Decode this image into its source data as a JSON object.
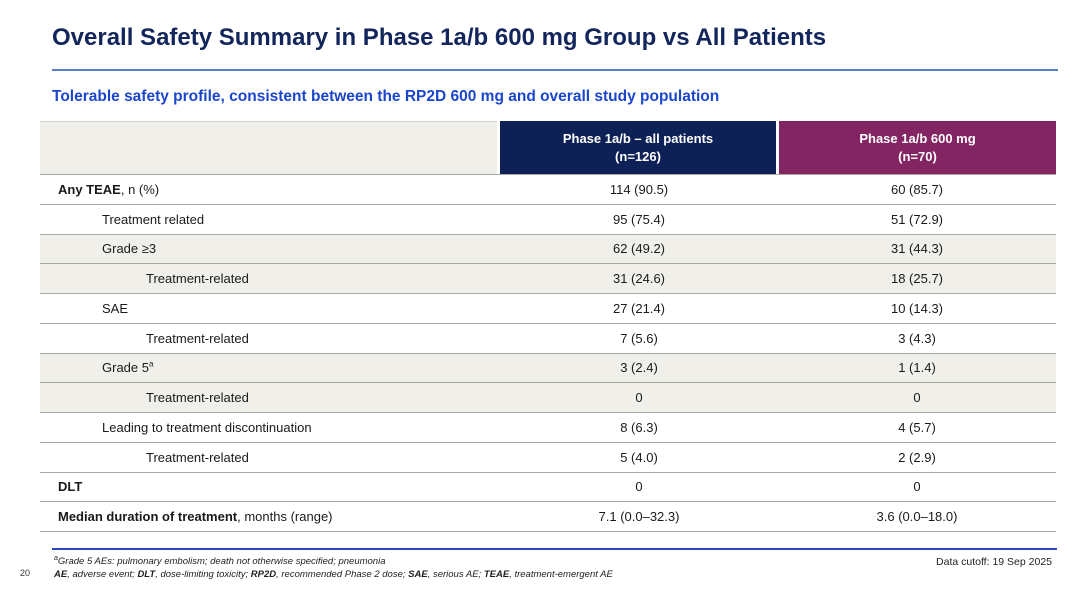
{
  "page_number": "20",
  "title": "Overall Safety Summary in Phase 1a/b 600 mg Group vs All Patients",
  "subtitle": "Tolerable safety profile, consistent between the RP2D 600 mg and overall study population",
  "colors": {
    "title_navy": "#13265c",
    "subtitle_blue": "#1b46cc",
    "header_navy": "#0d2157",
    "header_purple": "#832562",
    "shaded_row_gray": "#f0efe9",
    "title_rule_blue": "#5b7fc7",
    "footer_rule_blue": "#2a4bbd"
  },
  "table": {
    "columns": [
      {
        "title": "Phase 1a/b – all patients",
        "subtitle": "(n=126)"
      },
      {
        "title": "Phase 1a/b 600 mg",
        "subtitle": "(n=70)"
      }
    ],
    "rows": [
      {
        "label": "Any TEAE",
        "suffix": ", n (%)",
        "bold": true,
        "indent": 0,
        "shaded": false,
        "values": [
          "114 (90.5)",
          "60 (85.7)"
        ]
      },
      {
        "label": "Treatment related",
        "bold": false,
        "indent": 1,
        "shaded": false,
        "values": [
          "95 (75.4)",
          "51 (72.9)"
        ]
      },
      {
        "label": "Grade ≥3",
        "bold": false,
        "indent": 1,
        "shaded": true,
        "values": [
          "62 (49.2)",
          "31 (44.3)"
        ]
      },
      {
        "label": "Treatment-related",
        "bold": false,
        "indent": 2,
        "shaded": true,
        "values": [
          "31 (24.6)",
          "18 (25.7)"
        ]
      },
      {
        "label": "SAE",
        "bold": false,
        "indent": 1,
        "shaded": false,
        "values": [
          "27 (21.4)",
          "10 (14.3)"
        ]
      },
      {
        "label": "Treatment-related",
        "bold": false,
        "indent": 2,
        "shaded": false,
        "values": [
          "7 (5.6)",
          "3 (4.3)"
        ]
      },
      {
        "label": "Grade 5",
        "sup": "a",
        "bold": false,
        "indent": 1,
        "shaded": true,
        "values": [
          "3 (2.4)",
          "1 (1.4)"
        ]
      },
      {
        "label": "Treatment-related",
        "bold": false,
        "indent": 2,
        "shaded": true,
        "values": [
          "0",
          "0"
        ]
      },
      {
        "label": "Leading to treatment discontinuation",
        "bold": false,
        "indent": 1,
        "shaded": false,
        "values": [
          "8 (6.3)",
          "4 (5.7)"
        ]
      },
      {
        "label": "Treatment-related",
        "bold": false,
        "indent": 2,
        "shaded": false,
        "values": [
          "5 (4.0)",
          "2 (2.9)"
        ]
      },
      {
        "label": "DLT",
        "bold": true,
        "indent": 0,
        "shaded": false,
        "values": [
          "0",
          "0"
        ]
      },
      {
        "label": "Median duration of treatment",
        "suffix": ", months (range)",
        "bold": true,
        "indent": 0,
        "shaded": false,
        "values": [
          "7.1 (0.0–32.3)",
          "3.6 (0.0–18.0)"
        ]
      }
    ]
  },
  "footnotes": {
    "line1_sup": "a",
    "line1": "Grade 5 AEs: pulmonary embolism; death not otherwise specified; pneumonia",
    "line2_segments": [
      {
        "text": "AE",
        "bold": true
      },
      {
        "text": ", adverse event; ",
        "bold": false
      },
      {
        "text": "DLT",
        "bold": true
      },
      {
        "text": ", dose-limiting toxicity; ",
        "bold": false
      },
      {
        "text": "RP2D",
        "bold": true
      },
      {
        "text": ", recommended Phase 2 dose; ",
        "bold": false
      },
      {
        "text": "SAE",
        "bold": true
      },
      {
        "text": ", serious AE; ",
        "bold": false
      },
      {
        "text": "TEAE",
        "bold": true
      },
      {
        "text": ", treatment-emergent AE",
        "bold": false
      }
    ],
    "data_cutoff": "Data cutoff: 19 Sep 2025"
  }
}
